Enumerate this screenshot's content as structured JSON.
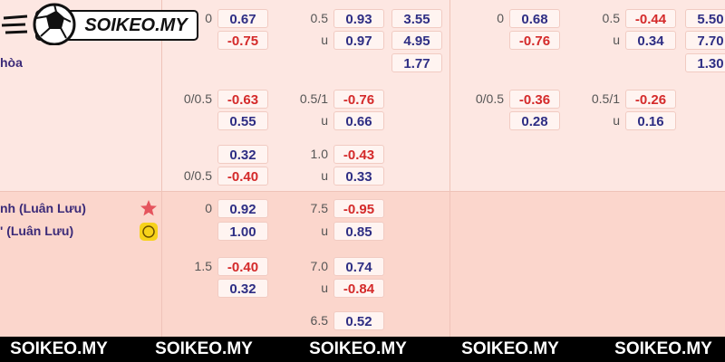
{
  "logo": {
    "text": "SOIKEO.MY"
  },
  "rows": [
    {
      "a": {
        "label": "0",
        "value": "0.67"
      },
      "b": {
        "label": "0.5",
        "value": "0.93"
      },
      "c": {
        "value": "3.55"
      },
      "d": {
        "label": "0",
        "value": "0.68"
      },
      "e": {
        "label": "0.5",
        "value": "-0.44"
      },
      "f": {
        "value": "5.50"
      }
    },
    {
      "a": {
        "value": "-0.75"
      },
      "b": {
        "label": "u",
        "value": "0.97"
      },
      "c": {
        "value": "4.95"
      },
      "d": {
        "value": "-0.76"
      },
      "e": {
        "label": "u",
        "value": "0.34"
      },
      "f": {
        "value": "7.70"
      }
    },
    {
      "team": "hòa",
      "c": {
        "value": "1.77"
      },
      "f": {
        "value": "1.30"
      }
    },
    {
      "a": {
        "label": "0/0.5",
        "value": "-0.63"
      },
      "b": {
        "label": "0.5/1",
        "value": "-0.76"
      },
      "d": {
        "label": "0/0.5",
        "value": "-0.36"
      },
      "e": {
        "label": "0.5/1",
        "value": "-0.26"
      }
    },
    {
      "a": {
        "value": "0.55"
      },
      "b": {
        "label": "u",
        "value": "0.66"
      },
      "d": {
        "value": "0.28"
      },
      "e": {
        "label": "u",
        "value": "0.16"
      }
    },
    {
      "a": {
        "value": "0.32"
      },
      "b": {
        "label": "1.0",
        "value": "-0.43"
      }
    },
    {
      "a": {
        "label": "0/0.5",
        "value": "-0.40"
      },
      "b": {
        "label": "u",
        "value": "0.33"
      }
    },
    {
      "team": "nh (Luân Lưu)",
      "a": {
        "label": "0",
        "value": "0.92"
      },
      "b": {
        "label": "7.5",
        "value": "-0.95"
      }
    },
    {
      "team": "' (Luân Lưu)",
      "a": {
        "value": "1.00"
      },
      "b": {
        "label": "u",
        "value": "0.85"
      }
    },
    {
      "a": {
        "label": "1.5",
        "value": "-0.40"
      },
      "b": {
        "label": "7.0",
        "value": "0.74"
      }
    },
    {
      "a": {
        "value": "0.32"
      },
      "b": {
        "label": "u",
        "value": "-0.84"
      }
    },
    {
      "b": {
        "label": "6.5",
        "value": "0.52"
      }
    }
  ],
  "watermarks": [
    "SOIKEO.MY",
    "SOIKEO.MY",
    "SOIKEO.MY",
    "SOIKEO.MY",
    "SOIKEO.MY"
  ]
}
